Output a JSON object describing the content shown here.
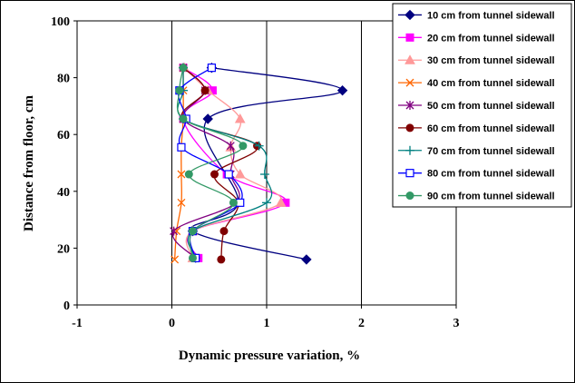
{
  "chart_data": {
    "type": "scatter",
    "xlabel": "Dynamic pressure variation, %",
    "ylabel": "Distance from floor, cm",
    "xlim": [
      -1,
      3
    ],
    "ylim": [
      0,
      100
    ],
    "xticks": [
      -1,
      0,
      1,
      2,
      3
    ],
    "yticks": [
      0,
      20,
      40,
      60,
      80,
      100
    ],
    "x_tick_labels": [
      "-1",
      "0",
      "1",
      "2",
      "3"
    ],
    "y_tick_labels": [
      "0",
      "20",
      "40",
      "60",
      "80",
      "100"
    ],
    "grid": "vertical",
    "legend_position": "right",
    "series": [
      {
        "name": "10 cm from tunnel sidewall",
        "color": "#000080",
        "marker": "diamond",
        "points": [
          [
            0.42,
            83.5
          ],
          [
            1.8,
            75.5
          ],
          [
            0.38,
            65.5
          ],
          [
            0.7,
            36
          ],
          [
            0.22,
            26
          ],
          [
            1.42,
            16
          ]
        ]
      },
      {
        "name": "20 cm from tunnel sidewall",
        "color": "#FF00FF",
        "marker": "square",
        "points": [
          [
            0.12,
            83.5
          ],
          [
            0.43,
            75.5
          ],
          [
            0.12,
            65.5
          ],
          [
            0.58,
            46
          ],
          [
            1.2,
            36
          ],
          [
            0.22,
            26
          ],
          [
            0.28,
            16.5
          ]
        ]
      },
      {
        "name": "30 cm from tunnel sidewall",
        "color": "#FF9999",
        "marker": "triangle",
        "points": [
          [
            0.13,
            83.5
          ],
          [
            0.38,
            75.5
          ],
          [
            0.72,
            65.5
          ],
          [
            0.62,
            55.5
          ],
          [
            0.72,
            46
          ],
          [
            1.15,
            36
          ],
          [
            0.22,
            26
          ],
          [
            0.22,
            16.5
          ]
        ]
      },
      {
        "name": "40 cm from tunnel sidewall",
        "color": "#FF6600",
        "marker": "x",
        "points": [
          [
            0.12,
            83.5
          ],
          [
            0.12,
            75.5
          ],
          [
            0.12,
            65.5
          ],
          [
            0.1,
            55.5
          ],
          [
            0.1,
            46
          ],
          [
            0.1,
            36
          ],
          [
            0.05,
            26
          ],
          [
            0.03,
            16
          ]
        ]
      },
      {
        "name": "50 cm from tunnel sidewall",
        "color": "#800080",
        "marker": "star",
        "points": [
          [
            0.12,
            83.5
          ],
          [
            0.35,
            75.5
          ],
          [
            0.12,
            65.5
          ],
          [
            0.62,
            56
          ],
          [
            0.62,
            46
          ],
          [
            0.68,
            36
          ],
          [
            0.02,
            26
          ],
          [
            0.25,
            16.5
          ]
        ]
      },
      {
        "name": "60 cm from tunnel sidewall",
        "color": "#800000",
        "marker": "circle",
        "points": [
          [
            0.12,
            83.5
          ],
          [
            0.35,
            75.5
          ],
          [
            0.12,
            65.5
          ],
          [
            0.9,
            56
          ],
          [
            0.45,
            46
          ],
          [
            0.7,
            36
          ],
          [
            0.55,
            26
          ],
          [
            0.52,
            16
          ]
        ]
      },
      {
        "name": "70 cm from tunnel sidewall",
        "color": "#008080",
        "marker": "plus",
        "points": [
          [
            0.12,
            83.5
          ],
          [
            0.12,
            75.5
          ],
          [
            0.12,
            65.5
          ],
          [
            0.92,
            56
          ],
          [
            0.98,
            46
          ],
          [
            1.0,
            36
          ],
          [
            0.22,
            26
          ],
          [
            0.25,
            16.5
          ]
        ]
      },
      {
        "name": "80 cm from tunnel sidewall",
        "color": "#0000FF",
        "marker": "opensquare",
        "points": [
          [
            0.42,
            83.5
          ],
          [
            0.08,
            75.5
          ],
          [
            0.15,
            65.5
          ],
          [
            0.1,
            55.5
          ],
          [
            0.6,
            46
          ],
          [
            0.72,
            36
          ],
          [
            0.22,
            26
          ],
          [
            0.25,
            16.5
          ]
        ]
      },
      {
        "name": "90 cm from tunnel sidewall",
        "color": "#339966",
        "marker": "circle",
        "points": [
          [
            0.12,
            83.5
          ],
          [
            0.08,
            75.5
          ],
          [
            0.12,
            65.5
          ],
          [
            0.75,
            56
          ],
          [
            0.18,
            46
          ],
          [
            0.65,
            36
          ],
          [
            0.22,
            26
          ],
          [
            0.22,
            16.5
          ]
        ]
      }
    ]
  }
}
